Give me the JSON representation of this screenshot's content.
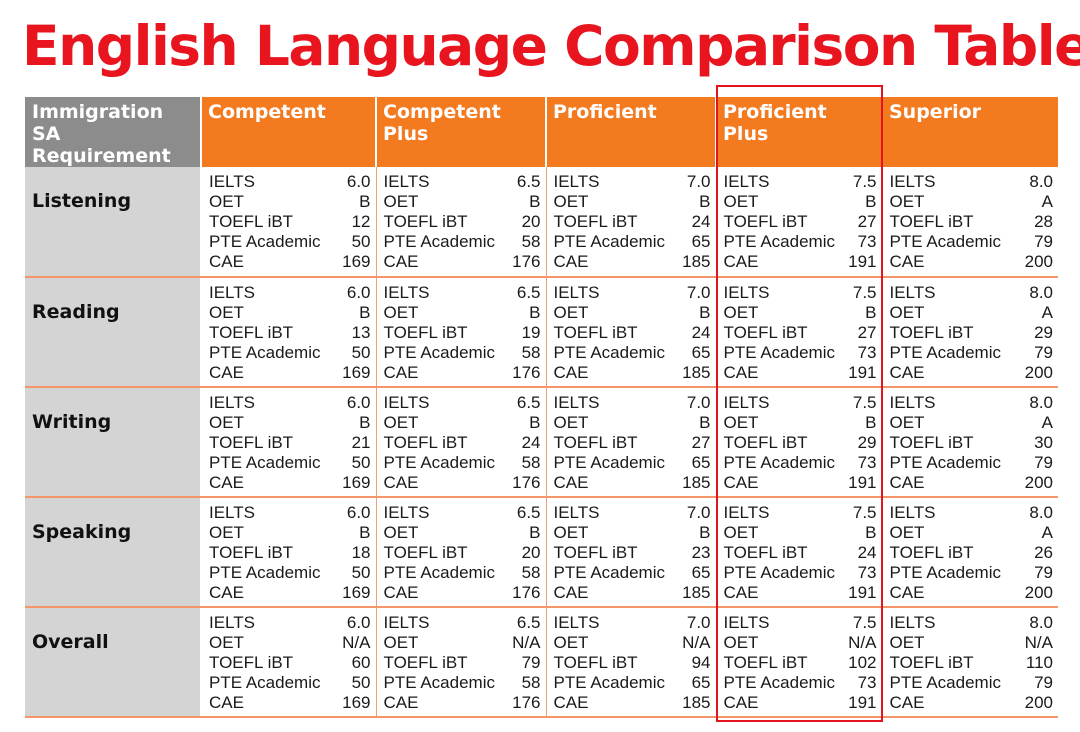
{
  "title": "English Language Comparison Table",
  "colors": {
    "title": "#e8141e",
    "header": "#f47a20",
    "requirement_header": "#8c8c8c",
    "skill_cell": "#d4d4d4",
    "highlight": "#e2141e"
  },
  "headers": [
    "Immigration SA Requirement",
    "Competent",
    "Competent Plus",
    "Proficient",
    "Proficient Plus",
    "Superior"
  ],
  "rows": [
    {
      "skill": "Listening",
      "levels": [
        [
          [
            "IELTS",
            "6.0"
          ],
          [
            "OET",
            "B"
          ],
          [
            "TOEFL iBT",
            "12"
          ],
          [
            "PTE Academic",
            "50"
          ],
          [
            "CAE",
            "169"
          ]
        ],
        [
          [
            "IELTS",
            "6.5"
          ],
          [
            "OET",
            "B"
          ],
          [
            "TOEFL iBT",
            "20"
          ],
          [
            "PTE Academic",
            "58"
          ],
          [
            "CAE",
            "176"
          ]
        ],
        [
          [
            "IELTS",
            "7.0"
          ],
          [
            "OET",
            "B"
          ],
          [
            "TOEFL iBT",
            "24"
          ],
          [
            "PTE Academic",
            "65"
          ],
          [
            "CAE",
            "185"
          ]
        ],
        [
          [
            "IELTS",
            "7.5"
          ],
          [
            "OET",
            "B"
          ],
          [
            "TOEFL iBT",
            "27"
          ],
          [
            "PTE Academic",
            "73"
          ],
          [
            "CAE",
            "191"
          ]
        ],
        [
          [
            "IELTS",
            "8.0"
          ],
          [
            "OET",
            "A"
          ],
          [
            "TOEFL iBT",
            "28"
          ],
          [
            "PTE Academic",
            "79"
          ],
          [
            "CAE",
            "200"
          ]
        ]
      ]
    },
    {
      "skill": "Reading",
      "levels": [
        [
          [
            "IELTS",
            "6.0"
          ],
          [
            "OET",
            "B"
          ],
          [
            "TOEFL iBT",
            "13"
          ],
          [
            "PTE Academic",
            "50"
          ],
          [
            "CAE",
            "169"
          ]
        ],
        [
          [
            "IELTS",
            "6.5"
          ],
          [
            "OET",
            "B"
          ],
          [
            "TOEFL iBT",
            "19"
          ],
          [
            "PTE Academic",
            "58"
          ],
          [
            "CAE",
            "176"
          ]
        ],
        [
          [
            "IELTS",
            "7.0"
          ],
          [
            "OET",
            "B"
          ],
          [
            "TOEFL iBT",
            "24"
          ],
          [
            "PTE Academic",
            "65"
          ],
          [
            "CAE",
            "185"
          ]
        ],
        [
          [
            "IELTS",
            "7.5"
          ],
          [
            "OET",
            "B"
          ],
          [
            "TOEFL iBT",
            "27"
          ],
          [
            "PTE Academic",
            "73"
          ],
          [
            "CAE",
            "191"
          ]
        ],
        [
          [
            "IELTS",
            "8.0"
          ],
          [
            "OET",
            "A"
          ],
          [
            "TOEFL iBT",
            "29"
          ],
          [
            "PTE Academic",
            "79"
          ],
          [
            "CAE",
            "200"
          ]
        ]
      ]
    },
    {
      "skill": "Writing",
      "levels": [
        [
          [
            "IELTS",
            "6.0"
          ],
          [
            "OET",
            "B"
          ],
          [
            "TOEFL iBT",
            "21"
          ],
          [
            "PTE Academic",
            "50"
          ],
          [
            "CAE",
            "169"
          ]
        ],
        [
          [
            "IELTS",
            "6.5"
          ],
          [
            "OET",
            "B"
          ],
          [
            "TOEFL iBT",
            "24"
          ],
          [
            "PTE Academic",
            "58"
          ],
          [
            "CAE",
            "176"
          ]
        ],
        [
          [
            "IELTS",
            "7.0"
          ],
          [
            "OET",
            "B"
          ],
          [
            "TOEFL iBT",
            "27"
          ],
          [
            "PTE Academic",
            "65"
          ],
          [
            "CAE",
            "185"
          ]
        ],
        [
          [
            "IELTS",
            "7.5"
          ],
          [
            "OET",
            "B"
          ],
          [
            "TOEFL iBT",
            "29"
          ],
          [
            "PTE Academic",
            "73"
          ],
          [
            "CAE",
            "191"
          ]
        ],
        [
          [
            "IELTS",
            "8.0"
          ],
          [
            "OET",
            "A"
          ],
          [
            "TOEFL iBT",
            "30"
          ],
          [
            "PTE Academic",
            "79"
          ],
          [
            "CAE",
            "200"
          ]
        ]
      ]
    },
    {
      "skill": "Speaking",
      "levels": [
        [
          [
            "IELTS",
            "6.0"
          ],
          [
            "OET",
            "B"
          ],
          [
            "TOEFL iBT",
            "18"
          ],
          [
            "PTE Academic",
            "50"
          ],
          [
            "CAE",
            "169"
          ]
        ],
        [
          [
            "IELTS",
            "6.5"
          ],
          [
            "OET",
            "B"
          ],
          [
            "TOEFL iBT",
            "20"
          ],
          [
            "PTE Academic",
            "58"
          ],
          [
            "CAE",
            "176"
          ]
        ],
        [
          [
            "IELTS",
            "7.0"
          ],
          [
            "OET",
            "B"
          ],
          [
            "TOEFL iBT",
            "23"
          ],
          [
            "PTE Academic",
            "65"
          ],
          [
            "CAE",
            "185"
          ]
        ],
        [
          [
            "IELTS",
            "7.5"
          ],
          [
            "OET",
            "B"
          ],
          [
            "TOEFL iBT",
            "24"
          ],
          [
            "PTE Academic",
            "73"
          ],
          [
            "CAE",
            "191"
          ]
        ],
        [
          [
            "IELTS",
            "8.0"
          ],
          [
            "OET",
            "A"
          ],
          [
            "TOEFL iBT",
            "26"
          ],
          [
            "PTE Academic",
            "79"
          ],
          [
            "CAE",
            "200"
          ]
        ]
      ]
    },
    {
      "skill": "Overall",
      "levels": [
        [
          [
            "IELTS",
            "6.0"
          ],
          [
            "OET",
            "N/A"
          ],
          [
            "TOEFL iBT",
            "60"
          ],
          [
            "PTE Academic",
            "50"
          ],
          [
            "CAE",
            "169"
          ]
        ],
        [
          [
            "IELTS",
            "6.5"
          ],
          [
            "OET",
            "N/A"
          ],
          [
            "TOEFL iBT",
            "79"
          ],
          [
            "PTE Academic",
            "58"
          ],
          [
            "CAE",
            "176"
          ]
        ],
        [
          [
            "IELTS",
            "7.0"
          ],
          [
            "OET",
            "N/A"
          ],
          [
            "TOEFL iBT",
            "94"
          ],
          [
            "PTE Academic",
            "65"
          ],
          [
            "CAE",
            "185"
          ]
        ],
        [
          [
            "IELTS",
            "7.5"
          ],
          [
            "OET",
            "N/A"
          ],
          [
            "TOEFL iBT",
            "102"
          ],
          [
            "PTE Academic",
            "73"
          ],
          [
            "CAE",
            "191"
          ]
        ],
        [
          [
            "IELTS",
            "8.0"
          ],
          [
            "OET",
            "N/A"
          ],
          [
            "TOEFL iBT",
            "110"
          ],
          [
            "PTE Academic",
            "79"
          ],
          [
            "CAE",
            "200"
          ]
        ]
      ]
    }
  ]
}
